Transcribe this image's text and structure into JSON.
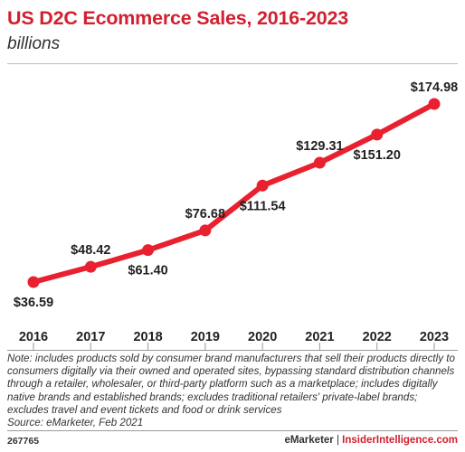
{
  "chart_data": {
    "type": "line",
    "title": "US D2C Ecommerce Sales, 2016-2023",
    "subtitle": "billions",
    "categories": [
      "2016",
      "2017",
      "2018",
      "2019",
      "2020",
      "2021",
      "2022",
      "2023"
    ],
    "series": [
      {
        "values": [
          36.59,
          48.42,
          61.4,
          76.68,
          111.54,
          129.31,
          151.2,
          174.98
        ],
        "labels": [
          "$36.59",
          "$48.42",
          "$61.40",
          "$76.68",
          "$111.54",
          "$129.31",
          "$151.20",
          "$174.98"
        ],
        "label_positions": [
          "below",
          "above",
          "below",
          "above",
          "below",
          "above",
          "below",
          "above"
        ],
        "color": "#e8202f"
      }
    ],
    "ylim": [
      30,
      180
    ],
    "grid": false,
    "legend": "none"
  },
  "note": "Note: includes products sold by consumer brand manufacturers that sell their products directly to consumers digitally via their owned and operated sites, bypassing standard distribution channels through a retailer, wholesaler, or third-party platform such as a marketplace; includes digitally native brands and established brands; excludes traditional retailers' private-label brands; excludes travel and event tickets and food or drink services",
  "source": "Source: eMarketer, Feb 2021",
  "footer": {
    "id": "267765",
    "brand_a": "eMarketer",
    "separator": " | ",
    "brand_b": "InsiderIntelligence.com"
  },
  "colors": {
    "title": "#d1202f",
    "line": "#e8202f"
  }
}
